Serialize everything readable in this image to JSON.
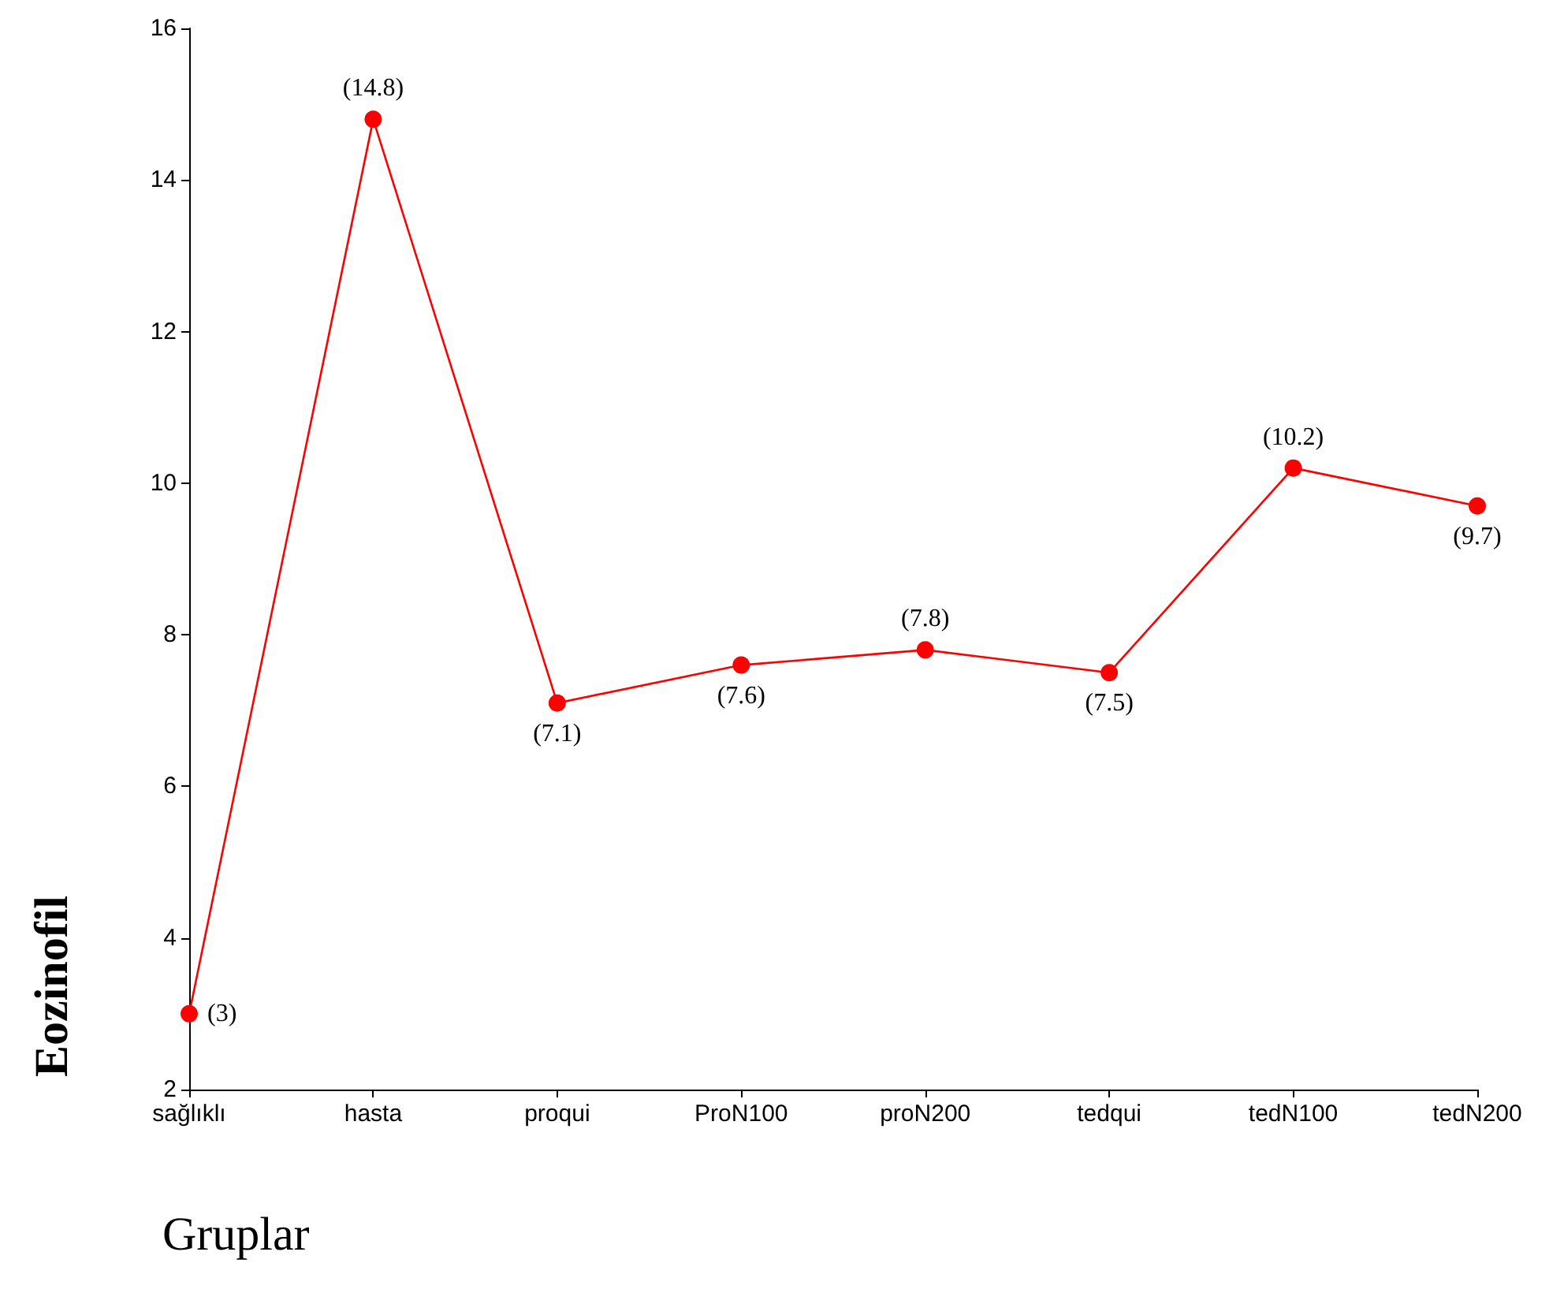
{
  "chart_data": {
    "type": "line",
    "xlabel": "Gruplar",
    "ylabel": "Eozinofil",
    "categories": [
      "sağlıklı",
      "hasta",
      "proqui",
      "ProN100",
      "proN200",
      "tedqui",
      "tedN100",
      "tedN200"
    ],
    "series": [
      {
        "color": "#ff0000",
        "values": [
          3,
          14.8,
          7.1,
          7.6,
          7.8,
          7.5,
          10.2,
          9.7
        ],
        "value_labels": [
          "(3)",
          "(14.8)",
          "(7.1)",
          "(7.6)",
          "(7.8)",
          "(7.5)",
          "(10.2)",
          "(9.7)"
        ]
      }
    ],
    "ylim": [
      2,
      16
    ],
    "yticks": [
      2,
      4,
      6,
      8,
      10,
      12,
      14,
      16
    ],
    "grid": false,
    "marker": "circle",
    "line_style": "solid"
  }
}
